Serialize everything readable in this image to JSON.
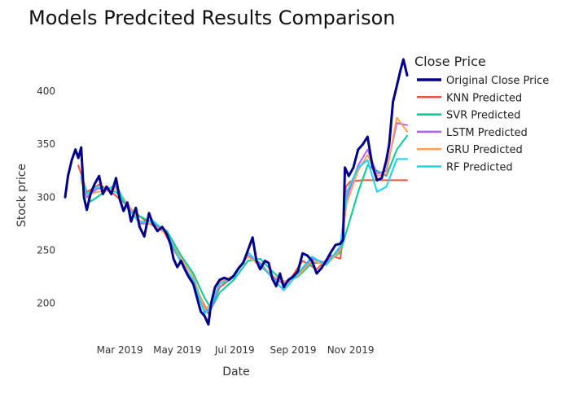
{
  "chart_data": {
    "type": "line",
    "title": "Models Predcited Results Comparison",
    "xlabel": "Date",
    "ylabel": "Stock price",
    "legend_title": "Close Price",
    "legend_position": "right",
    "grid": false,
    "xlim": [
      "2019-01-02",
      "2019-12-31"
    ],
    "ylim": [
      175,
      440
    ],
    "x_ticks": [
      {
        "date": "2019-03-01",
        "label": "Mar 2019"
      },
      {
        "date": "2019-05-01",
        "label": "May 2019"
      },
      {
        "date": "2019-07-01",
        "label": "Jul 2019"
      },
      {
        "date": "2019-09-01",
        "label": "Sep 2019"
      },
      {
        "date": "2019-11-01",
        "label": "Nov 2019"
      }
    ],
    "y_ticks": [
      200,
      250,
      300,
      350,
      400
    ],
    "series": [
      {
        "name": "Original Close Price",
        "color": "#00008b",
        "width": 3,
        "points": [
          [
            "2019-01-02",
            300
          ],
          [
            "2019-01-05",
            320
          ],
          [
            "2019-01-09",
            335
          ],
          [
            "2019-01-13",
            345
          ],
          [
            "2019-01-16",
            337
          ],
          [
            "2019-01-19",
            347
          ],
          [
            "2019-01-22",
            300
          ],
          [
            "2019-01-25",
            288
          ],
          [
            "2019-01-29",
            303
          ],
          [
            "2019-02-02",
            312
          ],
          [
            "2019-02-07",
            320
          ],
          [
            "2019-02-11",
            303
          ],
          [
            "2019-02-15",
            310
          ],
          [
            "2019-02-20",
            303
          ],
          [
            "2019-02-25",
            318
          ],
          [
            "2019-03-01",
            298
          ],
          [
            "2019-03-05",
            287
          ],
          [
            "2019-03-09",
            295
          ],
          [
            "2019-03-13",
            277
          ],
          [
            "2019-03-18",
            290
          ],
          [
            "2019-03-22",
            272
          ],
          [
            "2019-03-27",
            263
          ],
          [
            "2019-04-01",
            285
          ],
          [
            "2019-04-05",
            275
          ],
          [
            "2019-04-10",
            268
          ],
          [
            "2019-04-15",
            272
          ],
          [
            "2019-04-20",
            265
          ],
          [
            "2019-04-24",
            255
          ],
          [
            "2019-04-27",
            242
          ],
          [
            "2019-05-01",
            234
          ],
          [
            "2019-05-05",
            240
          ],
          [
            "2019-05-09",
            232
          ],
          [
            "2019-05-13",
            225
          ],
          [
            "2019-05-18",
            218
          ],
          [
            "2019-05-22",
            205
          ],
          [
            "2019-05-26",
            192
          ],
          [
            "2019-05-30",
            188
          ],
          [
            "2019-06-03",
            180
          ],
          [
            "2019-06-06",
            200
          ],
          [
            "2019-06-10",
            215
          ],
          [
            "2019-06-15",
            222
          ],
          [
            "2019-06-20",
            224
          ],
          [
            "2019-06-25",
            222
          ],
          [
            "2019-06-30",
            226
          ],
          [
            "2019-07-05",
            233
          ],
          [
            "2019-07-10",
            238
          ],
          [
            "2019-07-15",
            250
          ],
          [
            "2019-07-20",
            262
          ],
          [
            "2019-07-24",
            240
          ],
          [
            "2019-07-28",
            232
          ],
          [
            "2019-08-02",
            240
          ],
          [
            "2019-08-06",
            238
          ],
          [
            "2019-08-10",
            223
          ],
          [
            "2019-08-14",
            216
          ],
          [
            "2019-08-18",
            228
          ],
          [
            "2019-08-22",
            215
          ],
          [
            "2019-08-27",
            222
          ],
          [
            "2019-09-01",
            225
          ],
          [
            "2019-09-06",
            230
          ],
          [
            "2019-09-11",
            247
          ],
          [
            "2019-09-16",
            245
          ],
          [
            "2019-09-21",
            240
          ],
          [
            "2019-09-26",
            228
          ],
          [
            "2019-10-01",
            233
          ],
          [
            "2019-10-06",
            240
          ],
          [
            "2019-10-11",
            248
          ],
          [
            "2019-10-16",
            255
          ],
          [
            "2019-10-21",
            256
          ],
          [
            "2019-10-24",
            260
          ],
          [
            "2019-10-26",
            328
          ],
          [
            "2019-10-30",
            320
          ],
          [
            "2019-11-04",
            328
          ],
          [
            "2019-11-09",
            345
          ],
          [
            "2019-11-14",
            350
          ],
          [
            "2019-11-19",
            357
          ],
          [
            "2019-11-24",
            330
          ],
          [
            "2019-11-29",
            316
          ],
          [
            "2019-12-04",
            318
          ],
          [
            "2019-12-09",
            335
          ],
          [
            "2019-12-12",
            350
          ],
          [
            "2019-12-16",
            390
          ],
          [
            "2019-12-20",
            405
          ],
          [
            "2019-12-24",
            420
          ],
          [
            "2019-12-27",
            430
          ],
          [
            "2019-12-31",
            415
          ]
        ]
      },
      {
        "name": "KNN Predicted",
        "color": "#ef553b",
        "width": 2,
        "points": [
          [
            "2019-01-16",
            330
          ],
          [
            "2019-01-25",
            305
          ],
          [
            "2019-02-07",
            312
          ],
          [
            "2019-02-20",
            305
          ],
          [
            "2019-03-05",
            295
          ],
          [
            "2019-03-18",
            285
          ],
          [
            "2019-04-01",
            275
          ],
          [
            "2019-04-15",
            270
          ],
          [
            "2019-05-01",
            245
          ],
          [
            "2019-05-18",
            220
          ],
          [
            "2019-06-03",
            190
          ],
          [
            "2019-06-15",
            215
          ],
          [
            "2019-06-30",
            225
          ],
          [
            "2019-07-15",
            245
          ],
          [
            "2019-07-28",
            235
          ],
          [
            "2019-08-14",
            222
          ],
          [
            "2019-08-27",
            220
          ],
          [
            "2019-09-11",
            240
          ],
          [
            "2019-09-26",
            232
          ],
          [
            "2019-10-11",
            245
          ],
          [
            "2019-10-21",
            242
          ],
          [
            "2019-10-24",
            262
          ],
          [
            "2019-10-27",
            310
          ],
          [
            "2019-11-01",
            315
          ],
          [
            "2019-11-14",
            316
          ],
          [
            "2019-11-29",
            316
          ],
          [
            "2019-12-14",
            316
          ],
          [
            "2019-12-31",
            316
          ]
        ]
      },
      {
        "name": "SVR Predicted",
        "color": "#00cc96",
        "width": 2,
        "points": [
          [
            "2019-01-19",
            322
          ],
          [
            "2019-01-25",
            302
          ],
          [
            "2019-01-29",
            296
          ],
          [
            "2019-02-05",
            300
          ],
          [
            "2019-02-15",
            307
          ],
          [
            "2019-02-25",
            305
          ],
          [
            "2019-03-09",
            292
          ],
          [
            "2019-03-22",
            282
          ],
          [
            "2019-04-05",
            276
          ],
          [
            "2019-04-20",
            268
          ],
          [
            "2019-05-05",
            245
          ],
          [
            "2019-05-18",
            228
          ],
          [
            "2019-05-30",
            205
          ],
          [
            "2019-06-06",
            195
          ],
          [
            "2019-06-15",
            210
          ],
          [
            "2019-06-30",
            222
          ],
          [
            "2019-07-15",
            240
          ],
          [
            "2019-07-28",
            242
          ],
          [
            "2019-08-10",
            230
          ],
          [
            "2019-08-22",
            220
          ],
          [
            "2019-09-06",
            225
          ],
          [
            "2019-09-21",
            238
          ],
          [
            "2019-10-06",
            238
          ],
          [
            "2019-10-21",
            248
          ],
          [
            "2019-10-30",
            275
          ],
          [
            "2019-11-09",
            305
          ],
          [
            "2019-11-19",
            330
          ],
          [
            "2019-11-29",
            325
          ],
          [
            "2019-12-09",
            320
          ],
          [
            "2019-12-20",
            345
          ],
          [
            "2019-12-31",
            358
          ]
        ]
      },
      {
        "name": "LSTM Predicted",
        "color": "#ab63fa",
        "width": 2,
        "points": [
          [
            "2019-01-19",
            318
          ],
          [
            "2019-01-25",
            300
          ],
          [
            "2019-02-05",
            308
          ],
          [
            "2019-02-15",
            308
          ],
          [
            "2019-02-25",
            310
          ],
          [
            "2019-03-09",
            292
          ],
          [
            "2019-03-22",
            275
          ],
          [
            "2019-04-05",
            275
          ],
          [
            "2019-04-20",
            266
          ],
          [
            "2019-05-05",
            240
          ],
          [
            "2019-05-18",
            220
          ],
          [
            "2019-05-30",
            192
          ],
          [
            "2019-06-06",
            195
          ],
          [
            "2019-06-15",
            218
          ],
          [
            "2019-06-30",
            225
          ],
          [
            "2019-07-15",
            245
          ],
          [
            "2019-07-28",
            238
          ],
          [
            "2019-08-10",
            225
          ],
          [
            "2019-08-22",
            218
          ],
          [
            "2019-09-06",
            228
          ],
          [
            "2019-09-21",
            242
          ],
          [
            "2019-10-06",
            238
          ],
          [
            "2019-10-21",
            252
          ],
          [
            "2019-10-28",
            300
          ],
          [
            "2019-11-09",
            330
          ],
          [
            "2019-11-19",
            345
          ],
          [
            "2019-11-29",
            322
          ],
          [
            "2019-12-09",
            325
          ],
          [
            "2019-12-20",
            370
          ],
          [
            "2019-12-31",
            368
          ]
        ]
      },
      {
        "name": "GRU Predicted",
        "color": "#ffa15a",
        "width": 2,
        "points": [
          [
            "2019-01-19",
            315
          ],
          [
            "2019-01-25",
            302
          ],
          [
            "2019-02-05",
            305
          ],
          [
            "2019-02-15",
            306
          ],
          [
            "2019-02-25",
            308
          ],
          [
            "2019-03-09",
            294
          ],
          [
            "2019-03-22",
            278
          ],
          [
            "2019-04-05",
            274
          ],
          [
            "2019-04-20",
            265
          ],
          [
            "2019-05-05",
            242
          ],
          [
            "2019-05-18",
            225
          ],
          [
            "2019-05-30",
            195
          ],
          [
            "2019-06-06",
            198
          ],
          [
            "2019-06-15",
            220
          ],
          [
            "2019-06-30",
            226
          ],
          [
            "2019-07-15",
            244
          ],
          [
            "2019-07-28",
            236
          ],
          [
            "2019-08-10",
            226
          ],
          [
            "2019-08-22",
            220
          ],
          [
            "2019-09-06",
            226
          ],
          [
            "2019-09-21",
            240
          ],
          [
            "2019-10-06",
            236
          ],
          [
            "2019-10-21",
            250
          ],
          [
            "2019-10-28",
            295
          ],
          [
            "2019-11-09",
            325
          ],
          [
            "2019-11-19",
            340
          ],
          [
            "2019-11-29",
            320
          ],
          [
            "2019-12-09",
            322
          ],
          [
            "2019-12-20",
            375
          ],
          [
            "2019-12-31",
            362
          ]
        ]
      },
      {
        "name": "RF Predicted",
        "color": "#19d3f3",
        "width": 2,
        "points": [
          [
            "2019-01-19",
            320
          ],
          [
            "2019-01-25",
            303
          ],
          [
            "2019-02-05",
            310
          ],
          [
            "2019-02-15",
            307
          ],
          [
            "2019-02-25",
            312
          ],
          [
            "2019-03-09",
            290
          ],
          [
            "2019-03-22",
            276
          ],
          [
            "2019-04-05",
            278
          ],
          [
            "2019-04-20",
            266
          ],
          [
            "2019-05-05",
            238
          ],
          [
            "2019-05-18",
            222
          ],
          [
            "2019-05-30",
            190
          ],
          [
            "2019-06-06",
            198
          ],
          [
            "2019-06-15",
            218
          ],
          [
            "2019-06-30",
            224
          ],
          [
            "2019-07-15",
            248
          ],
          [
            "2019-07-28",
            236
          ],
          [
            "2019-08-10",
            224
          ],
          [
            "2019-08-22",
            212
          ],
          [
            "2019-09-06",
            228
          ],
          [
            "2019-09-21",
            244
          ],
          [
            "2019-10-06",
            236
          ],
          [
            "2019-10-21",
            254
          ],
          [
            "2019-10-28",
            305
          ],
          [
            "2019-11-09",
            328
          ],
          [
            "2019-11-19",
            335
          ],
          [
            "2019-11-29",
            305
          ],
          [
            "2019-12-09",
            310
          ],
          [
            "2019-12-20",
            336
          ],
          [
            "2019-12-31",
            336
          ]
        ]
      }
    ]
  }
}
